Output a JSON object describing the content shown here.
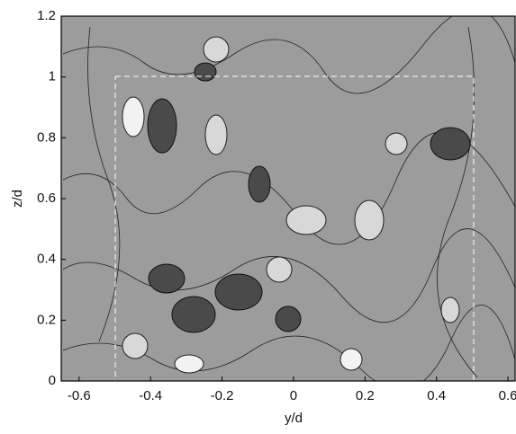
{
  "chart_data": {
    "type": "contour",
    "x_label": "y/d",
    "y_label": "z/d",
    "xlim": [
      -0.65,
      0.62
    ],
    "ylim": [
      0,
      1.2
    ],
    "xticks": [
      -0.6,
      -0.4,
      -0.2,
      0,
      0.2,
      0.4,
      0.6
    ],
    "yticks": [
      0,
      0.2,
      0.4,
      0.6,
      0.8,
      1,
      1.2
    ]
  }
}
